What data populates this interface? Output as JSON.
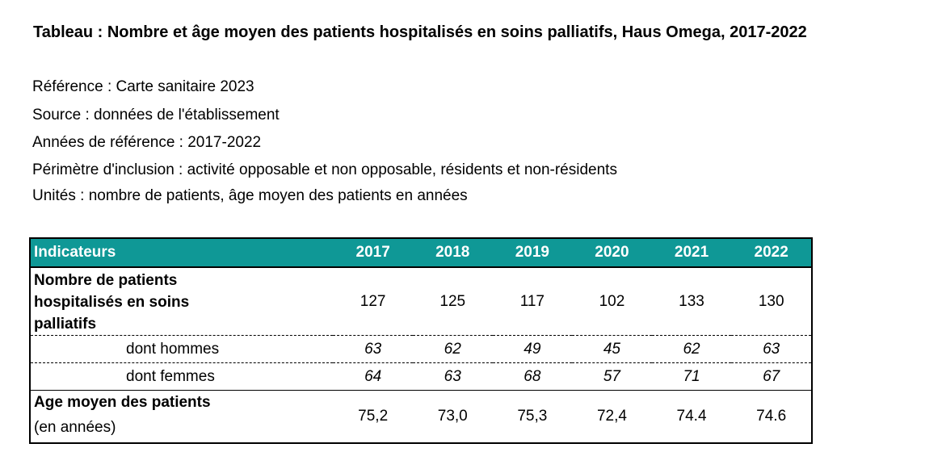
{
  "title": "Tableau : Nombre et âge moyen des patients hospitalisés en soins palliatifs, Haus Omega, 2017-2022",
  "meta": [
    "Référence : Carte sanitaire 2023",
    "Source : données de l'établissement",
    "Années de référence : 2017-2022",
    "Périmètre d'inclusion : activité opposable et non opposable, résidents et non-résidents",
    "Unités : nombre de patients, âge moyen des patients en années"
  ],
  "table": {
    "header": [
      "Indicateurs",
      "2017",
      "2018",
      "2019",
      "2020",
      "2021",
      "2022"
    ],
    "rows": [
      {
        "label_lines": [
          "Nombre de patients",
          "hospitalisés en soins",
          "palliatifs"
        ],
        "values": [
          "127",
          "125",
          "117",
          "102",
          "133",
          "130"
        ]
      },
      {
        "label": "dont hommes",
        "values": [
          "63",
          "62",
          "49",
          "45",
          "62",
          "63"
        ]
      },
      {
        "label": "dont femmes",
        "values": [
          "64",
          "63",
          "68",
          "57",
          "71",
          "67"
        ]
      },
      {
        "label": "Age moyen des patients",
        "sublabel": "(en années)",
        "values": [
          "75,2",
          "73,0",
          "75,3",
          "72,4",
          "74.4",
          "74.6"
        ]
      }
    ]
  },
  "colors": {
    "header_bg": "#0f9896",
    "header_text": "#ffffff"
  }
}
